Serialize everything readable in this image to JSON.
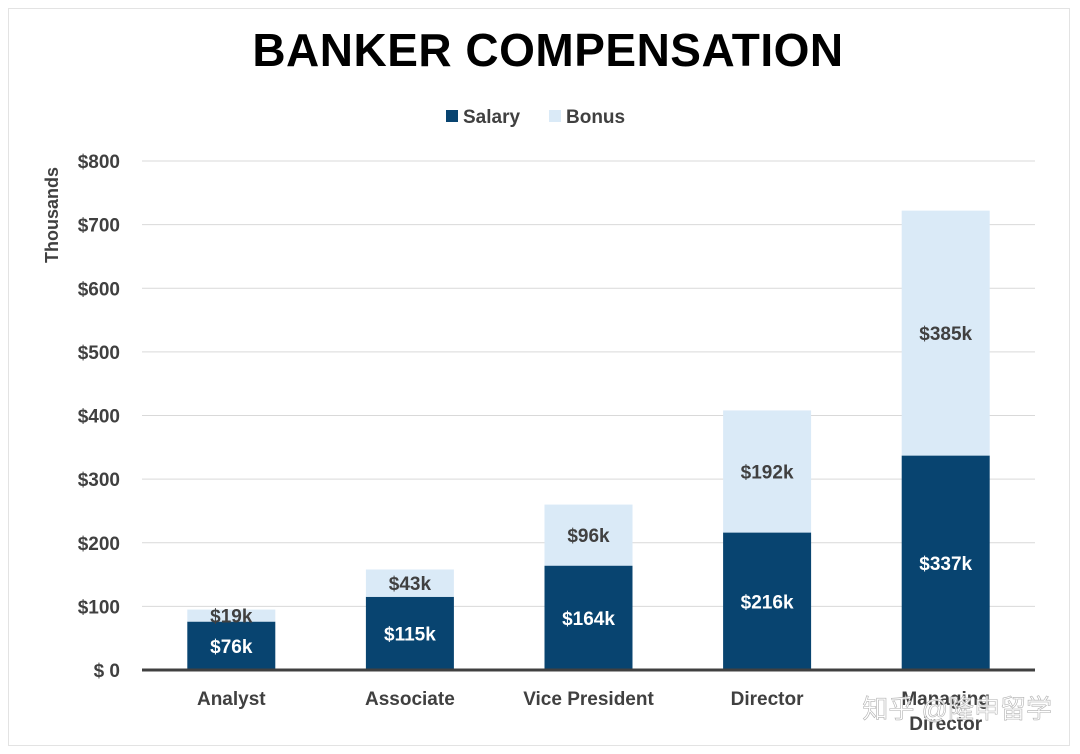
{
  "watermark": "知乎 @隆申留学",
  "chart_data": {
    "type": "bar",
    "stacked": true,
    "title": "BANKER COMPENSATION",
    "xlabel": "",
    "ylabel": "Thousands",
    "ylim": [
      0,
      800
    ],
    "yticks": [
      0,
      100,
      200,
      300,
      400,
      500,
      600,
      700,
      800
    ],
    "ytick_labels": [
      "$ 0",
      "$100",
      "$200",
      "$300",
      "$400",
      "$500",
      "$600",
      "$700",
      "$800"
    ],
    "grid": true,
    "legend_position": "top-center",
    "categories": [
      "Analyst",
      "Associate",
      "Vice President",
      "Director",
      "Managing Director"
    ],
    "series": [
      {
        "name": "Salary",
        "color": "#084470",
        "values": [
          76,
          115,
          164,
          216,
          337
        ],
        "labels": [
          "$76k",
          "$115k",
          "$164k",
          "$216k",
          "$337k"
        ]
      },
      {
        "name": "Bonus",
        "color": "#daeaf7",
        "values": [
          19,
          43,
          96,
          192,
          385
        ],
        "labels": [
          "$19k",
          "$43k",
          "$96k",
          "$192k",
          "$385k"
        ]
      }
    ]
  }
}
